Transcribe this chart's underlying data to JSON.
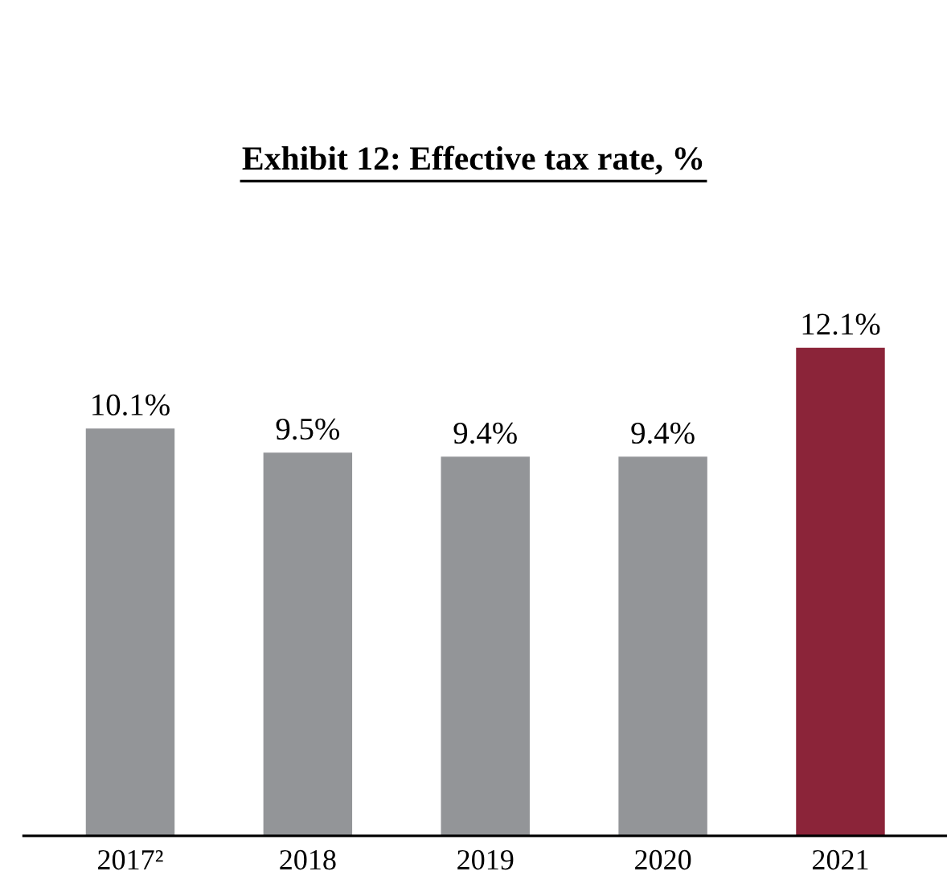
{
  "chart_data": {
    "type": "bar",
    "title": "Exhibit 12: Effective tax rate, %",
    "categories": [
      "2017²",
      "2018",
      "2019",
      "2020",
      "2021"
    ],
    "values": [
      10.1,
      9.5,
      9.4,
      9.4,
      12.1
    ],
    "colors": [
      "#939598",
      "#939598",
      "#939598",
      "#939598",
      "#8b2439"
    ],
    "value_labels": [
      "10.1%",
      "9.5%",
      "9.4%",
      "9.4%",
      "12.1%"
    ],
    "grid": false,
    "legend": false
  }
}
